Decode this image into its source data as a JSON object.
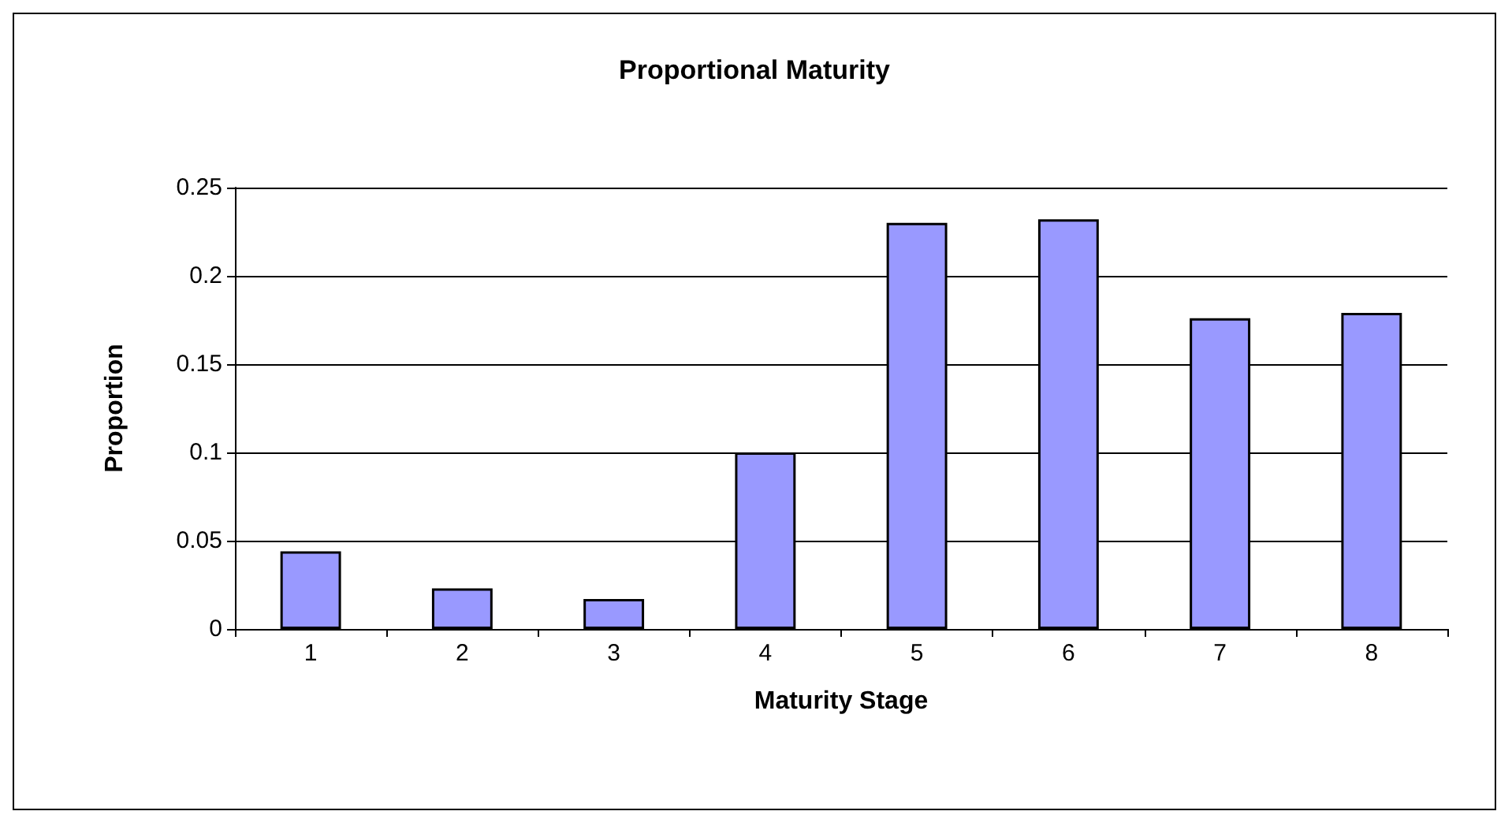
{
  "chart_data": {
    "type": "bar",
    "title": "Proportional Maturity",
    "xlabel": "Maturity Stage",
    "ylabel": "Proportion",
    "categories": [
      "1",
      "2",
      "3",
      "4",
      "5",
      "6",
      "7",
      "8"
    ],
    "values": [
      0.044,
      0.023,
      0.017,
      0.1,
      0.23,
      0.232,
      0.176,
      0.179
    ],
    "color": "#9999ff",
    "ylim": [
      0,
      0.25
    ],
    "yticks": [
      0,
      0.05,
      0.1,
      0.15,
      0.2,
      0.25
    ],
    "grid": "y"
  }
}
